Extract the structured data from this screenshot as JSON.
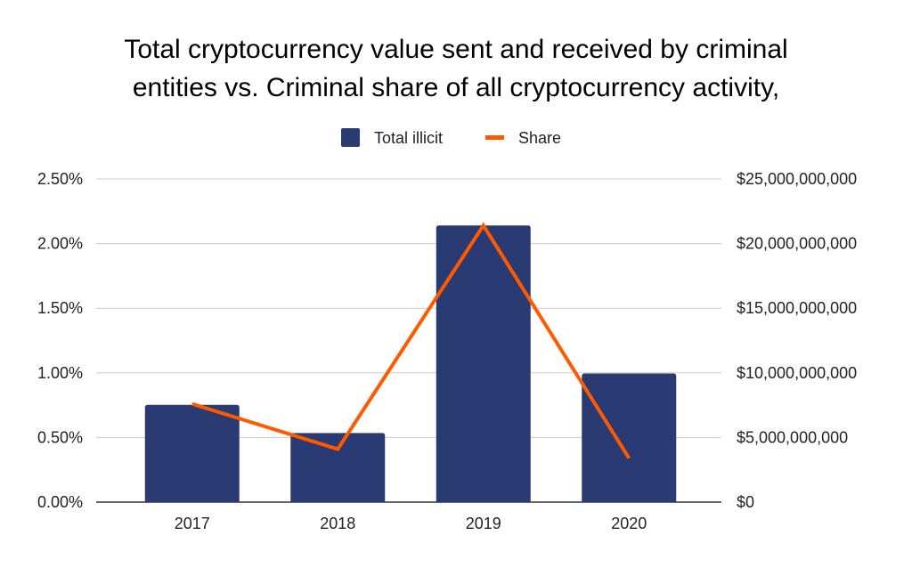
{
  "chart_data": {
    "type": "bar+line",
    "title_lines": [
      "Total cryptocurrency value sent and received by criminal",
      "entities vs. Criminal share of all cryptocurrency activity,"
    ],
    "categories": [
      "2017",
      "2018",
      "2019",
      "2020"
    ],
    "series": [
      {
        "name": "Total illicit",
        "type": "bar",
        "axis": "right",
        "color": "#2a3a73",
        "values": [
          7520000000,
          5350000000,
          21400000000,
          9950000000
        ]
      },
      {
        "name": "Share",
        "type": "line",
        "axis": "left",
        "color": "#ff5a00",
        "values": [
          0.76,
          0.41,
          2.14,
          0.34
        ]
      }
    ],
    "left_axis": {
      "range": [
        0,
        2.5
      ],
      "ticks": [
        "0.00%",
        "0.50%",
        "1.00%",
        "1.50%",
        "2.00%",
        "2.50%"
      ]
    },
    "right_axis": {
      "range": [
        0,
        25000000000
      ],
      "ticks": [
        "$0",
        "$5,000,000,000",
        "$10,000,000,000",
        "$15,000,000,000",
        "$20,000,000,000",
        "$25,000,000,000"
      ]
    },
    "grid": true,
    "legend_position": "top"
  }
}
